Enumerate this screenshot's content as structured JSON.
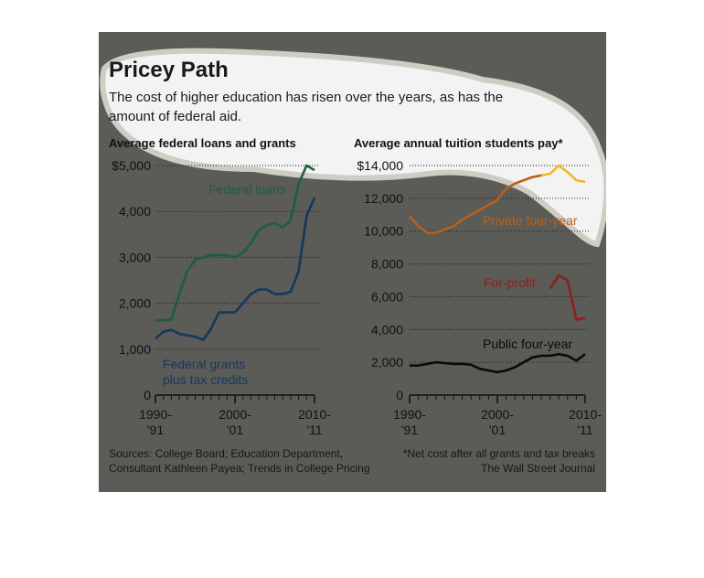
{
  "title": "Pricey Path",
  "subtitle": "The cost of higher education has risen over the years, as has the amount of federal aid.",
  "sources": "Sources: College Board; Education Department,",
  "sources_2": "Consultant Kathleen Payea; Trends in College Pricing",
  "footnote": "*Net cost after all grants and tax breaks",
  "publisher": "The Wall Street Journal",
  "colors": {
    "background": "#5b5b57",
    "federal_loans": "#1d5f3a",
    "federal_grants": "#14395c",
    "private_four_year": "#b8601c",
    "private_four_year_recent": "#f0b828",
    "for_profit": "#8c1f1f",
    "public_four_year": "#0a0a0a"
  },
  "chart_data": [
    {
      "type": "line",
      "title": "Average federal loans and grants",
      "ylim": [
        0,
        5000
      ],
      "yticks": [
        "$5,000",
        "4,000",
        "3,000",
        "2,000",
        "1,000",
        "0"
      ],
      "xticks": [
        [
          "1990-",
          "'91"
        ],
        [
          "2000-",
          "'01"
        ],
        [
          "2010-",
          "'11"
        ]
      ],
      "x": [
        "1990-91",
        "1991-92",
        "1992-93",
        "1993-94",
        "1994-95",
        "1995-96",
        "1996-97",
        "1997-98",
        "1998-99",
        "1999-00",
        "2000-01",
        "2001-02",
        "2002-03",
        "2003-04",
        "2004-05",
        "2005-06",
        "2006-07",
        "2007-08",
        "2008-09",
        "2009-10",
        "2010-11"
      ],
      "series": [
        {
          "name": "Federal loans",
          "label_lines": [
            "Federal loans"
          ],
          "color_key": "federal_loans",
          "values": [
            1620,
            1630,
            1650,
            2200,
            2700,
            2950,
            3000,
            3050,
            3050,
            3050,
            3000,
            3100,
            3300,
            3600,
            3700,
            3750,
            3650,
            3800,
            4600,
            5000,
            4900
          ]
        },
        {
          "name": "Federal grants plus tax credits",
          "label_lines": [
            "Federal grants",
            "plus tax credits"
          ],
          "color_key": "federal_grants",
          "values": [
            1230,
            1380,
            1420,
            1330,
            1300,
            1270,
            1200,
            1450,
            1800,
            1800,
            1800,
            2000,
            2200,
            2300,
            2300,
            2200,
            2200,
            2250,
            2700,
            3900,
            4300
          ]
        }
      ]
    },
    {
      "type": "line",
      "title": "Average annual tuition students pay*",
      "ylim": [
        0,
        14000
      ],
      "yticks": [
        "$14,000",
        "12,000",
        "10,000",
        "8,000",
        "6,000",
        "4,000",
        "2,000",
        "0"
      ],
      "xticks": [
        [
          "1990-",
          "'91"
        ],
        [
          "2000-",
          "'01"
        ],
        [
          "2010-",
          "'11"
        ]
      ],
      "x": [
        "1990-91",
        "1991-92",
        "1992-93",
        "1993-94",
        "1994-95",
        "1995-96",
        "1996-97",
        "1997-98",
        "1998-99",
        "1999-00",
        "2000-01",
        "2001-02",
        "2002-03",
        "2003-04",
        "2004-05",
        "2005-06",
        "2006-07",
        "2007-08",
        "2008-09",
        "2009-10",
        "2010-11"
      ],
      "series": [
        {
          "name": "Private four-year",
          "label_lines": [
            "Private four-year"
          ],
          "color_key": "private_four_year",
          "values": [
            10900,
            10300,
            9900,
            9900,
            10100,
            10300,
            10700,
            11000,
            11300,
            11600,
            11900,
            12600,
            12900,
            13100,
            13300,
            13400,
            null,
            null,
            null,
            null,
            null
          ]
        },
        {
          "name": "Private four-year (recent)",
          "label_lines": [],
          "color_key": "private_four_year_recent",
          "values": [
            null,
            null,
            null,
            null,
            null,
            null,
            null,
            null,
            null,
            null,
            null,
            null,
            null,
            null,
            null,
            13400,
            13500,
            14000,
            13600,
            13100,
            13000
          ]
        },
        {
          "name": "For-profit",
          "label_lines": [
            "For-profit"
          ],
          "color_key": "for_profit",
          "values": [
            null,
            null,
            null,
            null,
            null,
            null,
            null,
            null,
            null,
            null,
            null,
            null,
            null,
            null,
            null,
            null,
            6500,
            7300,
            7000,
            4600,
            4700
          ]
        },
        {
          "name": "Public four-year",
          "label_lines": [
            "Public four-year"
          ],
          "color_key": "public_four_year",
          "values": [
            1800,
            1800,
            1900,
            2000,
            1950,
            1900,
            1900,
            1850,
            1600,
            1500,
            1400,
            1500,
            1700,
            2000,
            2300,
            2400,
            2400,
            2500,
            2400,
            2100,
            2500
          ]
        }
      ]
    }
  ]
}
